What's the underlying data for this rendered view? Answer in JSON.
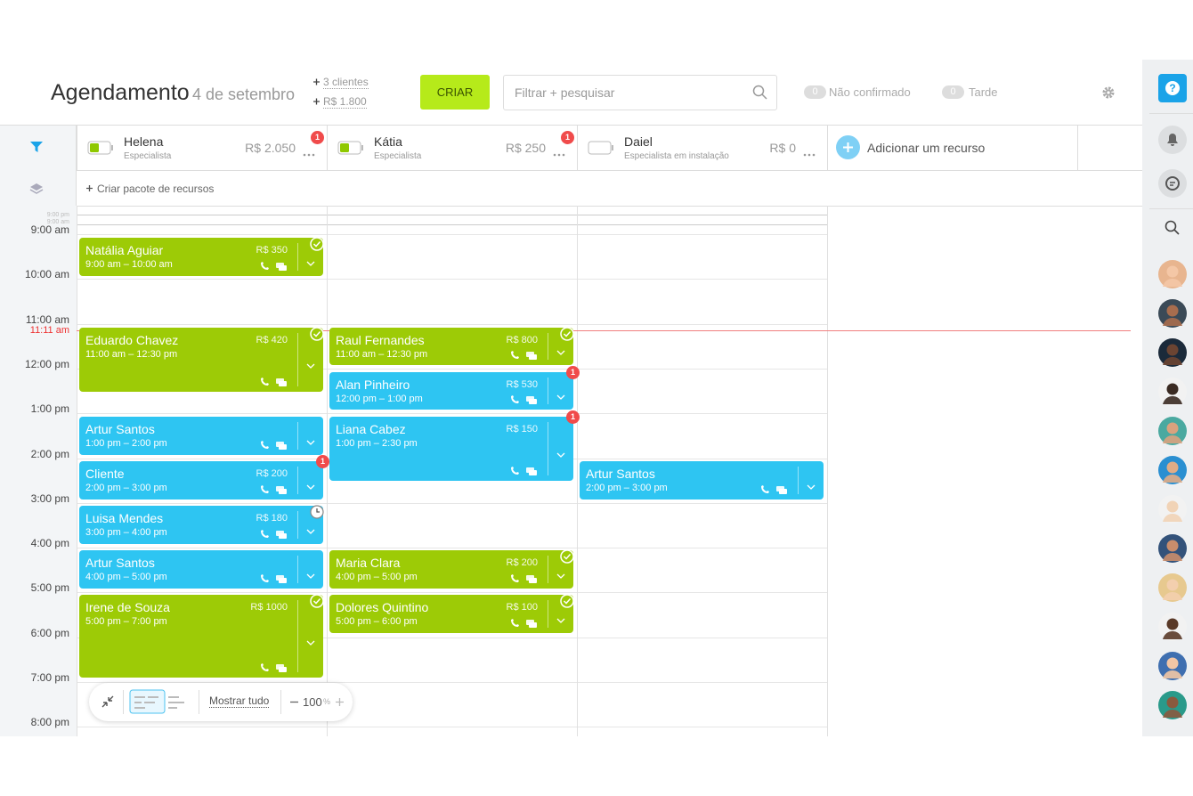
{
  "header": {
    "title": "Agendamento",
    "date": "4 de setembro",
    "clients": "3 clientes",
    "total": "R$ 1.800",
    "create": "CRIAR",
    "search_placeholder": "Filtrar + pesquisar",
    "unconfirmed_count": "0",
    "unconfirmed": "Não confirmado",
    "late_count": "0",
    "late": "Tarde"
  },
  "resources": [
    {
      "name": "Helena",
      "role": "Especialista",
      "amount": "R$ 2.050",
      "badge": "1"
    },
    {
      "name": "Kátia",
      "role": "Especialista",
      "amount": "R$ 250",
      "badge": "1"
    },
    {
      "name": "Daiel",
      "role": "Especialista em instalação",
      "amount": "R$ 0"
    }
  ],
  "add_resource": "Adicionar um recurso",
  "create_package": "Criar pacote de recursos",
  "early_times": [
    "9:00 pm",
    "9:00 am"
  ],
  "times": [
    "9:00 am",
    "10:00 am",
    "11:00 am",
    "12:00 pm",
    "1:00 pm",
    "2:00 pm",
    "3:00 pm",
    "4:00 pm",
    "5:00 pm",
    "6:00 pm",
    "7:00 pm",
    "8:00 pm"
  ],
  "current_time": "11:11 am",
  "appointments": [
    {
      "name": "Natália Aguiar",
      "time": "9:00 am – 10:00 am",
      "price": "R$ 350",
      "color": "#9dcb06"
    },
    {
      "name": "Eduardo Chavez",
      "time": "11:00 am – 12:30 pm",
      "price": "R$ 420",
      "color": "#9dcb06"
    },
    {
      "name": "Artur Santos",
      "time": "1:00 pm – 2:00 pm",
      "color": "#2ec5f2"
    },
    {
      "name": "Cliente",
      "time": "2:00 pm – 3:00 pm",
      "price": "R$ 200",
      "badge": "1",
      "color": "#2ec5f2"
    },
    {
      "name": "Luisa Mendes",
      "time": "3:00 pm – 4:00 pm",
      "price": "R$ 180",
      "color": "#2ec5f2"
    },
    {
      "name": "Artur Santos",
      "time": "4:00 pm – 5:00 pm",
      "color": "#2ec5f2"
    },
    {
      "name": "Irene de Souza",
      "time": "5:00 pm – 7:00 pm",
      "price": "R$ 1000",
      "color": "#9dcb06"
    },
    {
      "name": "Raul Fernandes",
      "time": "11:00 am – 12:30 pm",
      "price": "R$ 800",
      "color": "#9dcb06"
    },
    {
      "name": "Alan Pinheiro",
      "time": "12:00 pm – 1:00 pm",
      "price": "R$ 530",
      "badge": "1",
      "color": "#2ec5f2"
    },
    {
      "name": "Liana Cabez",
      "time": "1:00 pm – 2:30 pm",
      "price": "R$ 150",
      "badge": "1",
      "color": "#2ec5f2"
    },
    {
      "name": "Maria Clara",
      "time": "4:00 pm – 5:00 pm",
      "price": "R$ 200",
      "color": "#9dcb06"
    },
    {
      "name": "Dolores Quintino",
      "time": "5:00 pm – 6:00 pm",
      "price": "R$ 100",
      "color": "#9dcb06"
    },
    {
      "name": "Artur Santos",
      "time": "2:00 pm – 3:00 pm",
      "color": "#2ec5f2"
    }
  ],
  "toolbar": {
    "show_all": "Mostrar tudo",
    "zoom": "100",
    "zoom_unit": "%"
  },
  "sidebar": {
    "help": "?"
  }
}
